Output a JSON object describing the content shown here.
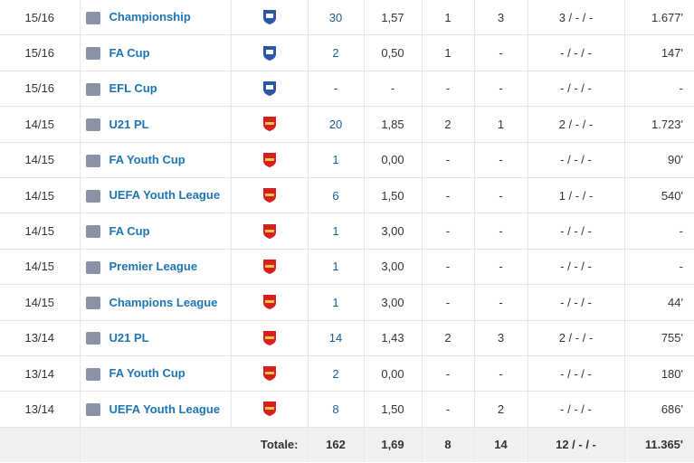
{
  "table": {
    "rows": [
      [
        "15/16",
        "Championship",
        "30",
        "1,57",
        "1",
        "3",
        "3 / - / -",
        "1.677'"
      ],
      [
        "15/16",
        "FA Cup",
        "2",
        "0,50",
        "1",
        "-",
        "- / - / -",
        "147'"
      ],
      [
        "15/16",
        "EFL Cup",
        "-",
        "-",
        "-",
        "-",
        "- / - / -",
        "-"
      ],
      [
        "14/15",
        "U21 PL",
        "20",
        "1,85",
        "2",
        "1",
        "2 / - / -",
        "1.723'"
      ],
      [
        "14/15",
        "FA Youth Cup",
        "1",
        "0,00",
        "-",
        "-",
        "- / - / -",
        "90'"
      ],
      [
        "14/15",
        "UEFA Youth League",
        "6",
        "1,50",
        "-",
        "-",
        "1 / - / -",
        "540'"
      ],
      [
        "14/15",
        "FA Cup",
        "1",
        "3,00",
        "-",
        "-",
        "- / - / -",
        "-"
      ],
      [
        "14/15",
        "Premier League",
        "1",
        "3,00",
        "-",
        "-",
        "- / - / -",
        "-"
      ],
      [
        "14/15",
        "Champions League",
        "1",
        "3,00",
        "-",
        "-",
        "- / - / -",
        "44'"
      ],
      [
        "13/14",
        "U21 PL",
        "14",
        "1,43",
        "2",
        "3",
        "2 / - / -",
        "755'"
      ],
      [
        "13/14",
        "FA Youth Cup",
        "2",
        "0,00",
        "-",
        "-",
        "- / - / -",
        "180'"
      ],
      [
        "13/14",
        "UEFA Youth League",
        "8",
        "1,50",
        "-",
        "2",
        "- / - / -",
        "686'"
      ]
    ],
    "totals": {
      "label": "Totale:",
      "values": [
        "162",
        "1,69",
        "8",
        "14",
        "12 / - / -",
        "11.365'"
      ]
    }
  }
}
